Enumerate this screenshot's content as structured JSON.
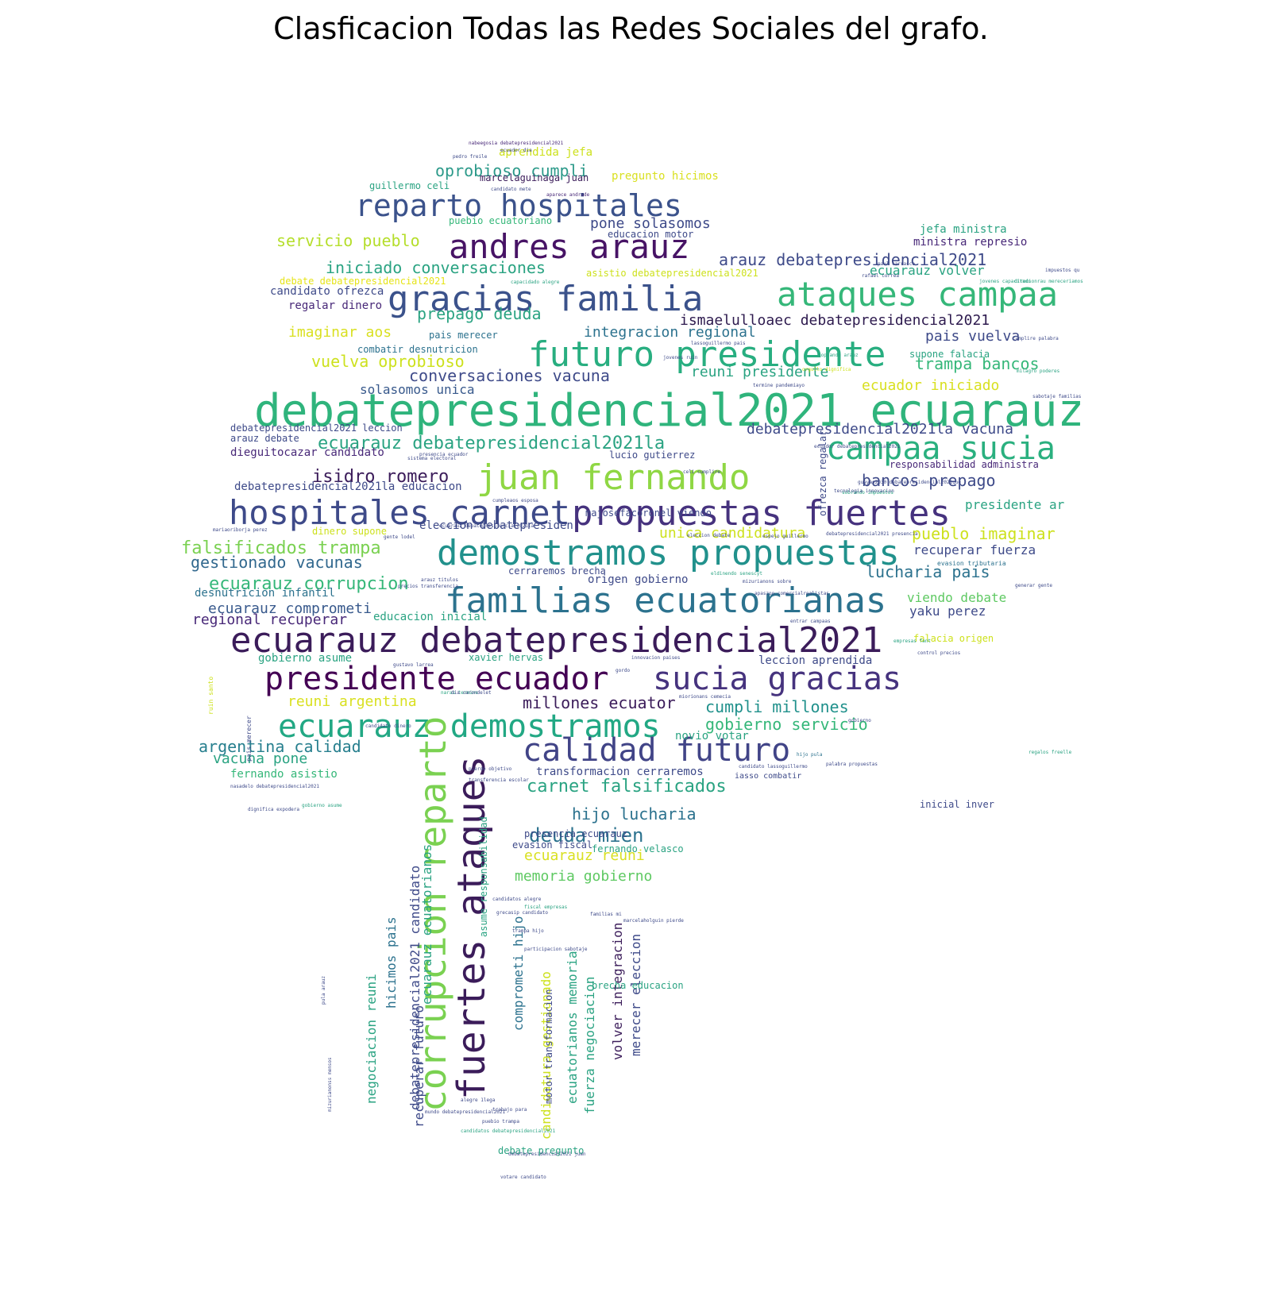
{
  "title": "Clasficacion Todas las Redes Sociales del grafo.",
  "palette": {
    "purple": "#440154",
    "indigo": "#414487",
    "blue": "#2a788e",
    "teal": "#22a884",
    "green": "#7ad151",
    "yellow": "#d9e021"
  },
  "cloud": {
    "words": [
      {
        "text": "debatepresidencial2021 ecuarauz",
        "color": "#2fb47c"
      },
      {
        "text": "ecuarauz debatepresidencial2021",
        "color": "#3b1c5a"
      },
      {
        "text": "propuestas fuertes",
        "color": "#46327e"
      },
      {
        "text": "demostramos propuestas",
        "color": "#21918c"
      },
      {
        "text": "familias ecuatorianas",
        "color": "#2c728e"
      },
      {
        "text": "futuro presidente",
        "color": "#28ae80"
      },
      {
        "text": "gracias familia",
        "color": "#3b528b"
      },
      {
        "text": "ataques campaa",
        "color": "#35b779"
      },
      {
        "text": "juan fernando",
        "color": "#8fd744"
      },
      {
        "text": "hospitales carnet",
        "color": "#3e4a89"
      },
      {
        "text": "andres arauz",
        "color": "#471365"
      },
      {
        "text": "reparto hospitales",
        "color": "#3b528b"
      },
      {
        "text": "campaa sucia",
        "color": "#2ab07f"
      },
      {
        "text": "presidente ecuador",
        "color": "#440154"
      },
      {
        "text": "sucia gracias",
        "color": "#46337e"
      },
      {
        "text": "ecuarauz demostramos",
        "color": "#22a884"
      },
      {
        "text": "calidad futuro",
        "color": "#414487"
      },
      {
        "text": "fuertes ataques",
        "color": "#3b1c5a"
      },
      {
        "text": "corrupcion reparto",
        "color": "#7ad151"
      },
      {
        "text": "oprobioso cumpli",
        "color": "#2c9a8a"
      },
      {
        "text": "servicio pueblo",
        "color": "#b5de2b"
      },
      {
        "text": "iniciado conversaciones",
        "color": "#2aa382"
      },
      {
        "text": "prepago deuda",
        "color": "#2aa382"
      },
      {
        "text": "imaginar aos",
        "color": "#d9e021"
      },
      {
        "text": "vuelva oprobioso",
        "color": "#cde11d"
      },
      {
        "text": "conversaciones vacuna",
        "color": "#3e4a89"
      },
      {
        "text": "solasomos unica",
        "color": "#38598c"
      },
      {
        "text": "ecuarauz debatepresidencial2021la",
        "color": "#2aa382"
      },
      {
        "text": "isidro romero",
        "color": "#3b1c5a"
      },
      {
        "text": "falsificados trampa",
        "color": "#7ad151"
      },
      {
        "text": "gestionado vacunas",
        "color": "#31688e"
      },
      {
        "text": "ecuarauz corrupcion",
        "color": "#35b779"
      },
      {
        "text": "ecuarauz comprometi",
        "color": "#38598c"
      },
      {
        "text": "regional recuperar",
        "color": "#482878"
      },
      {
        "text": "argentina calidad",
        "color": "#277f8e"
      },
      {
        "text": "vacuna pone",
        "color": "#2aa382"
      },
      {
        "text": "reuni argentina",
        "color": "#d9e021"
      },
      {
        "text": "millones ecuator",
        "color": "#3b1c5a"
      },
      {
        "text": "cumpli millones",
        "color": "#21918c"
      },
      {
        "text": "gobierno servicio",
        "color": "#35b779"
      },
      {
        "text": "carnet falsificados",
        "color": "#2aa382"
      },
      {
        "text": "hijo lucharia",
        "color": "#2c728e"
      },
      {
        "text": "deuda mien",
        "color": "#2c728e"
      },
      {
        "text": "ecuarauz reuni",
        "color": "#d9e021"
      },
      {
        "text": "memoria gobierno",
        "color": "#5ec962"
      },
      {
        "text": "arauz debatepresidencial2021",
        "color": "#3e4a89"
      },
      {
        "text": "ismaelulloaec debatepresidencial2021",
        "color": "#2d1a4e"
      },
      {
        "text": "integracion regional",
        "color": "#2c728e"
      },
      {
        "text": "pais vuelva",
        "color": "#3e4a89"
      },
      {
        "text": "trampa bancos",
        "color": "#35b779"
      },
      {
        "text": "reuni presidente",
        "color": "#2aa382"
      },
      {
        "text": "ecuador iniciado",
        "color": "#d9e021"
      },
      {
        "text": "debatepresidencial2021la vacuna",
        "color": "#3e4a89"
      },
      {
        "text": "bancos prepago",
        "color": "#3e4a89"
      },
      {
        "text": "presidente ar",
        "color": "#2aa382"
      },
      {
        "text": "pueblo imaginar",
        "color": "#cde11d"
      },
      {
        "text": "unica candidatura",
        "color": "#cde11d"
      },
      {
        "text": "recuperar fuerza",
        "color": "#3e4a89"
      },
      {
        "text": "lucharia pais",
        "color": "#2c728e"
      },
      {
        "text": "viendo debate",
        "color": "#5ec962"
      },
      {
        "text": "yaku perez",
        "color": "#3e4a89"
      },
      {
        "text": "pone solasomos",
        "color": "#3e4a89"
      },
      {
        "text": "ecuarauz volver",
        "color": "#2aa382"
      },
      {
        "text": "candidato ofrezca",
        "color": "#3e4a89"
      },
      {
        "text": "regalar dinero",
        "color": "#482878"
      },
      {
        "text": "dieguitocazar candidato",
        "color": "#482878"
      },
      {
        "text": "debatepresidencial2021la educacion",
        "color": "#3e4a89"
      },
      {
        "text": "eleccion debatepresiden",
        "color": "#3e4a89"
      },
      {
        "text": "origen gobierno",
        "color": "#3e4a89"
      },
      {
        "text": "desnutricion infantil",
        "color": "#2c728e"
      },
      {
        "text": "educacion inicial",
        "color": "#2aa382"
      },
      {
        "text": "gobierno asume",
        "color": "#2aa382"
      },
      {
        "text": "fernando asistio",
        "color": "#35b779"
      },
      {
        "text": "transformacion cerraremos",
        "color": "#3e4a89"
      },
      {
        "text": "novio votar",
        "color": "#2aa382"
      },
      {
        "text": "jefa ministra",
        "color": "#2aa382"
      },
      {
        "text": "ministra represio",
        "color": "#482878"
      },
      {
        "text": "inicial inver",
        "color": "#3e4a89"
      },
      {
        "text": "combatir desnutricion",
        "color": "#2c728e"
      },
      {
        "text": "pais merecer",
        "color": "#2c728e"
      },
      {
        "text": "debatepresidencial2021 leccion",
        "color": "#3e4a89"
      },
      {
        "text": "arauz debate",
        "color": "#3e4a89"
      },
      {
        "text": "responsabilidad administra",
        "color": "#482878"
      },
      {
        "text": "guillermo celi",
        "color": "#2aa382"
      },
      {
        "text": "aprendida jefa",
        "color": "#cde11d"
      },
      {
        "text": "marcelaguinaga juan",
        "color": "#3b1c5a"
      },
      {
        "text": "pregunto hicimos",
        "color": "#d9e021"
      },
      {
        "text": "puebio ecuatoriano",
        "color": "#35b779"
      },
      {
        "text": "educacion motor",
        "color": "#3e4a89"
      },
      {
        "text": "debate debatepresidencial2021",
        "color": "#e6e419"
      },
      {
        "text": "asistio debatepresidencial2021",
        "color": "#cde11d"
      },
      {
        "text": "majosefacoronel viendo",
        "color": "#3e4a89"
      },
      {
        "text": "lucio gutierrez",
        "color": "#3e4a89"
      },
      {
        "text": "dinero supone",
        "color": "#cde11d"
      },
      {
        "text": "cerraremos brecha",
        "color": "#3e4a89"
      },
      {
        "text": "supone falacia",
        "color": "#2aa382"
      },
      {
        "text": "falacia origen",
        "color": "#cde11d"
      },
      {
        "text": "leccion aprendida",
        "color": "#3e4a89"
      },
      {
        "text": "xavier hervas",
        "color": "#2aa382"
      },
      {
        "text": "debatepresidencial2021 candidato",
        "color": "#3e4a89"
      },
      {
        "text": "ecuarauz ecuatorianos",
        "color": "#2aa382"
      },
      {
        "text": "negociacion reuni",
        "color": "#2aa382"
      },
      {
        "text": "hicimos pais",
        "color": "#2c728e"
      },
      {
        "text": "recuperar futuro",
        "color": "#3e4a89"
      },
      {
        "text": "comprometi hijo",
        "color": "#2c728e"
      },
      {
        "text": "candidatura gestionado",
        "color": "#cde11d"
      },
      {
        "text": "ecuatorianos memoria",
        "color": "#2aa382"
      },
      {
        "text": "fuerza negociacion",
        "color": "#2aa382"
      },
      {
        "text": "volver integracion",
        "color": "#3b1c5a"
      },
      {
        "text": "merecer eleccion",
        "color": "#3e4a89"
      },
      {
        "text": "asume responsabilidad",
        "color": "#2aa382"
      },
      {
        "text": "motor transformacion",
        "color": "#3e4a89"
      },
      {
        "text": "fernando velasco",
        "color": "#2aa382"
      },
      {
        "text": "evasion fiscal",
        "color": "#3e4a89"
      },
      {
        "text": "presencia ecuarauz",
        "color": "#3e4a89"
      },
      {
        "text": "brecha educacion",
        "color": "#2aa382"
      },
      {
        "text": "debate pregunto",
        "color": "#2aa382"
      },
      {
        "text": "ofrezca regalar",
        "color": "#3e4a89"
      },
      {
        "text": "iasso combatir",
        "color": "#3e4a89"
      },
      {
        "text": "nabeegosia debatepresidencial2021",
        "color": "#482878"
      },
      {
        "text": "ecuador dia",
        "color": "#3e4a89"
      },
      {
        "text": "pedro freile",
        "color": "#3e4a89"
      },
      {
        "text": "candidato mete",
        "color": "#3e4a89"
      },
      {
        "text": "aparece andrade",
        "color": "#482878"
      },
      {
        "text": "cumpleaos esposa",
        "color": "#3e4a89"
      },
      {
        "text": "sistema electoral",
        "color": "#3e4a89"
      },
      {
        "text": "evasion tributaria",
        "color": "#2c728e"
      },
      {
        "text": "mizurianons sobre",
        "color": "#3e4a89"
      },
      {
        "text": "sobrando impuestos",
        "color": "#2aa382"
      },
      {
        "text": "tecnologia innovacion",
        "color": "#3e4a89"
      },
      {
        "text": "control precios",
        "color": "#3e4a89"
      },
      {
        "text": "empresas fant",
        "color": "#2aa382"
      },
      {
        "text": "innovacion paises",
        "color": "#3e4a89"
      },
      {
        "text": "rafael correa",
        "color": "#3e4a89"
      },
      {
        "text": "paul carrasco",
        "color": "#3e4a89"
      },
      {
        "text": "candidato lassoguillermo",
        "color": "#3e4a89"
      },
      {
        "text": "hijo pula",
        "color": "#2c728e"
      },
      {
        "text": "regalos freelle",
        "color": "#2aa382"
      },
      {
        "text": "milagro poderes",
        "color": "#2aa382"
      },
      {
        "text": "sabotaje familias",
        "color": "#3e4a89"
      },
      {
        "text": "impuestos qu",
        "color": "#3e4a89"
      },
      {
        "text": "direcionrau mereceriamos",
        "color": "#2aa382"
      },
      {
        "text": "cumplire palabra",
        "color": "#3e4a89"
      },
      {
        "text": "participacion sabotaje",
        "color": "#3e4a89"
      },
      {
        "text": "trampa hijo",
        "color": "#3e4a89"
      },
      {
        "text": "familias mi",
        "color": "#3e4a89"
      },
      {
        "text": "votare candidato",
        "color": "#3e4a89"
      },
      {
        "text": "debatepresidencial2021 juan",
        "color": "#3e4a89"
      },
      {
        "text": "candidatos debatepresidencial2021",
        "color": "#2aa382"
      },
      {
        "text": "mundo debatepresidencial2021",
        "color": "#3e4a89"
      },
      {
        "text": "alegre 1lega",
        "color": "#3e4a89"
      },
      {
        "text": "fiscal empresas",
        "color": "#2aa382"
      },
      {
        "text": "marcelaholguin pierde",
        "color": "#3e4a89"
      },
      {
        "text": "guayas2030 debatepresidencial2021que",
        "color": "#3e4a89"
      },
      {
        "text": "orgullo dignifica",
        "color": "#cde11d"
      },
      {
        "text": "capacidado alegre",
        "color": "#2aa382"
      },
      {
        "text": "termine pandemiayo",
        "color": "#3e4a89"
      },
      {
        "text": "gente lodel",
        "color": "#3e4a89"
      },
      {
        "text": "precios transferencia",
        "color": "#3e4a89"
      },
      {
        "text": "jovenes capacitado",
        "color": "#2aa382"
      },
      {
        "text": "ruin santo",
        "color": "#cde11d"
      },
      {
        "text": "mariaoriborja perez",
        "color": "#3e4a89"
      },
      {
        "text": "generar gente",
        "color": "#3e4a89"
      },
      {
        "text": "dignifica expodera",
        "color": "#3e4a89"
      },
      {
        "text": "nasadelo debatepresidencial2021",
        "color": "#3e4a89"
      },
      {
        "text": "pula arauz",
        "color": "#3e4a89"
      },
      {
        "text": "mizurianonss mensos",
        "color": "#3e4a89"
      },
      {
        "text": "ecuador debatepresidencial2021",
        "color": "#3e4a89"
      },
      {
        "text": "debatepresidencial2021 presencia",
        "color": "#3e4a89"
      },
      {
        "text": "espejo guillermo",
        "color": "#3e4a89"
      },
      {
        "text": "naras termine",
        "color": "#2aa382"
      },
      {
        "text": "eleccion debate",
        "color": "#3e4a89"
      },
      {
        "text": "ecuarauz debatepresidencial2021la",
        "color": "#3e4a89"
      },
      {
        "text": "presencia ecuador",
        "color": "#3e4a89"
      },
      {
        "text": "celi cumplire",
        "color": "#3e4a89"
      },
      {
        "text": "gobierno",
        "color": "#3e4a89"
      },
      {
        "text": "eldinendo senescyt",
        "color": "#2aa382"
      },
      {
        "text": "palabra propuestas",
        "color": "#3e4a89"
      },
      {
        "text": "apaszoo comercialrealistas",
        "color": "#3e4a89"
      },
      {
        "text": "soplando arauz",
        "color": "#2aa382"
      },
      {
        "text": "miorionans cemecia",
        "color": "#3e4a89"
      },
      {
        "text": "jovenes ruin",
        "color": "#3e4a89"
      },
      {
        "text": "gordo",
        "color": "#3e4a89"
      },
      {
        "text": "entrar campaas",
        "color": "#3e4a89"
      },
      {
        "text": "lassoguillermo pais",
        "color": "#3e4a89"
      },
      {
        "text": "gobierno asume",
        "color": "#2aa382"
      },
      {
        "text": "candidato dinero",
        "color": "#3e4a89"
      },
      {
        "text": "pais merecer",
        "color": "#3e4a89"
      },
      {
        "text": "dia carondelet",
        "color": "#3e4a89"
      },
      {
        "text": "transferencia escolar",
        "color": "#3e4a89"
      },
      {
        "text": "pierde objetivo",
        "color": "#3e4a89"
      },
      {
        "text": "arauz titulos",
        "color": "#3e4a89"
      },
      {
        "text": "puebio trampa",
        "color": "#3e4a89"
      },
      {
        "text": "trabajo para",
        "color": "#3e4a89"
      },
      {
        "text": "grecasip candidato",
        "color": "#3e4a89"
      },
      {
        "text": "candidatos alegre",
        "color": "#3e4a89"
      },
      {
        "text": "gustavo larrea",
        "color": "#3e4a89"
      },
      {
        "text": "pais iniciado",
        "color": "#3e4a89"
      }
    ]
  }
}
